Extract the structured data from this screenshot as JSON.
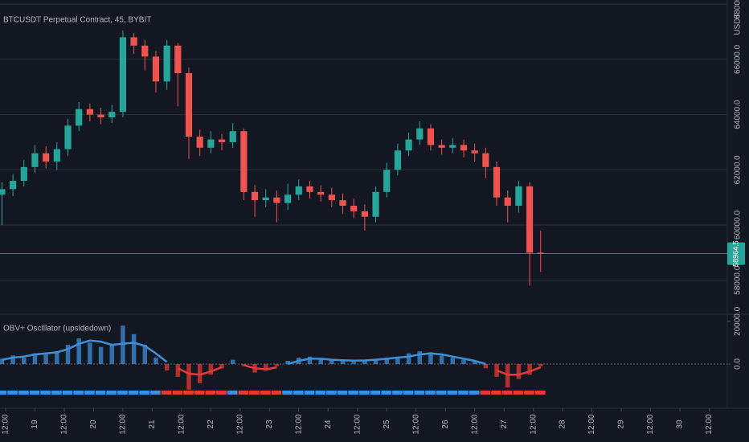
{
  "chart_data": [
    {
      "type": "candlestick",
      "title": "BTCUSDT Perpetual Contract, 45, BYBIT",
      "currency": "USDT",
      "x": [
        -1.5,
        3,
        7.5,
        12,
        16.5,
        21,
        25.5,
        30,
        34.5,
        39,
        43.5,
        48,
        52.5,
        57,
        61.5,
        66,
        70.5,
        75,
        79.5,
        84,
        88.5,
        93,
        97.5,
        102,
        106.5,
        111,
        115.5,
        120,
        124.5,
        129,
        133.5,
        138,
        142.5,
        147,
        151.5,
        156,
        160.5,
        165,
        169.5,
        174,
        178.5,
        183,
        187.5,
        192,
        196.5,
        201,
        205.5,
        210,
        214.5,
        219
      ],
      "open": [
        61100,
        61300,
        61600,
        62100,
        62600,
        62300,
        62750,
        63600,
        64200,
        64000,
        63900,
        64100,
        66800,
        66500,
        66100,
        65200,
        66500,
        65500,
        63200,
        62800,
        63100,
        63000,
        63400,
        61200,
        60900,
        61000,
        60800,
        61100,
        61400,
        61200,
        61100,
        60900,
        60700,
        60500,
        60300,
        61200,
        62000,
        62700,
        63100,
        63500,
        62900,
        62800,
        62900,
        62700,
        62600,
        62100,
        61000,
        60700,
        61400,
        59000
      ],
      "high": [
        61550,
        61850,
        62350,
        62900,
        62850,
        63000,
        63850,
        64450,
        64400,
        64250,
        64350,
        67050,
        66950,
        66700,
        66300,
        66700,
        66600,
        65700,
        63450,
        63400,
        63300,
        63700,
        63500,
        61450,
        61300,
        61250,
        61500,
        61650,
        61600,
        61450,
        61350,
        61150,
        60950,
        60750,
        61400,
        62250,
        62950,
        63350,
        63750,
        63650,
        63100,
        63150,
        63100,
        62950,
        62800,
        62300,
        61250,
        61600,
        61550,
        59800
      ],
      "low": [
        60000,
        61050,
        61400,
        61900,
        62050,
        62000,
        62500,
        63400,
        63750,
        63650,
        63700,
        63900,
        66200,
        65600,
        64800,
        64900,
        64300,
        62400,
        62500,
        62600,
        62700,
        62800,
        60900,
        60300,
        60650,
        60100,
        60550,
        60900,
        60950,
        60850,
        60650,
        60400,
        60250,
        59800,
        60100,
        61000,
        61800,
        62500,
        62900,
        62700,
        62550,
        62600,
        62450,
        62300,
        61700,
        60700,
        60100,
        60450,
        57800,
        58300
      ],
      "close": [
        61300,
        61600,
        62100,
        62600,
        62300,
        62750,
        63600,
        64200,
        64000,
        63900,
        64100,
        66800,
        66500,
        66100,
        65200,
        66500,
        65500,
        63200,
        62800,
        63100,
        63000,
        63400,
        61200,
        60900,
        61000,
        60800,
        61100,
        61400,
        61200,
        61100,
        60900,
        60700,
        60500,
        60300,
        61200,
        62000,
        62700,
        63100,
        63500,
        62900,
        62800,
        62900,
        62700,
        62600,
        62100,
        61000,
        60700,
        61400,
        59000,
        58964.5
      ],
      "up_color": "#26a69a",
      "down_color": "#ef5350",
      "ylim": [
        56800,
        68150
      ],
      "yticks": [
        {
          "value": 58000,
          "label": "58000.0"
        },
        {
          "value": 60000,
          "label": "60000.0"
        },
        {
          "value": 62000,
          "label": "62000.0"
        },
        {
          "value": 64000,
          "label": "64000.0"
        },
        {
          "value": 66000,
          "label": "66000.0"
        },
        {
          "value": 68000,
          "label": "68000.0"
        }
      ],
      "xlim": [
        -2.3,
        295.4
      ],
      "xticks": [
        {
          "value": 0,
          "label": "12:00"
        },
        {
          "value": 12,
          "label": "19"
        },
        {
          "value": 24,
          "label": "12:00"
        },
        {
          "value": 36,
          "label": "20"
        },
        {
          "value": 48,
          "label": "12:00"
        },
        {
          "value": 60,
          "label": "21"
        },
        {
          "value": 72,
          "label": "12:00"
        },
        {
          "value": 84,
          "label": "22"
        },
        {
          "value": 96,
          "label": "12:00"
        },
        {
          "value": 108,
          "label": "23"
        },
        {
          "value": 120,
          "label": "12:00"
        },
        {
          "value": 132,
          "label": "24"
        },
        {
          "value": 144,
          "label": "12:00"
        },
        {
          "value": 156,
          "label": "25"
        },
        {
          "value": 168,
          "label": "12:00"
        },
        {
          "value": 180,
          "label": "26"
        },
        {
          "value": 192,
          "label": "12:00"
        },
        {
          "value": 204,
          "label": "27"
        },
        {
          "value": 216,
          "label": "12:00"
        },
        {
          "value": 228,
          "label": "28"
        },
        {
          "value": 240,
          "label": "12:00"
        },
        {
          "value": 252,
          "label": "29"
        },
        {
          "value": 264,
          "label": "12:00"
        },
        {
          "value": 276,
          "label": "30"
        },
        {
          "value": 288,
          "label": "12:00"
        }
      ],
      "grid": true
    },
    {
      "type": "bar",
      "title": "OBV+ Oscillator (upsidedown)",
      "values": [
        2500,
        4000,
        3000,
        5000,
        4500,
        6000,
        9000,
        12000,
        10000,
        8000,
        9000,
        18000,
        14000,
        9000,
        3000,
        -3000,
        -6000,
        -12000,
        -9000,
        -5000,
        -2000,
        2000,
        -1000,
        -4000,
        -3000,
        -1000,
        1500,
        3000,
        3500,
        2500,
        2000,
        1500,
        1000,
        1500,
        2500,
        3000,
        3500,
        5000,
        6000,
        5500,
        4000,
        3000,
        2000,
        1000,
        -2000,
        -6000,
        -11000,
        -7000,
        -5000,
        -1000
      ],
      "line_values": [
        2000,
        3000,
        3500,
        4500,
        5000,
        5500,
        7000,
        9500,
        11000,
        10500,
        9000,
        9500,
        10000,
        8500,
        5000,
        1000,
        -2000,
        -4500,
        -5000,
        -3500,
        -1500,
        500,
        -500,
        -2000,
        -2500,
        -1500,
        0,
        1500,
        2500,
        2500,
        2000,
        1800,
        1600,
        1700,
        2000,
        2500,
        3000,
        3500,
        4500,
        5000,
        4500,
        3500,
        2500,
        1500,
        0,
        -3000,
        -5000,
        -5000,
        -3500,
        -1500
      ],
      "positive_color": "#3d8fd9",
      "negative_color": "#e53935",
      "ylim": [
        -19600,
        22600
      ],
      "yticks": [
        {
          "value": 0,
          "label": "0.0"
        },
        {
          "value": 20000,
          "label": "20000.0"
        }
      ]
    }
  ]
}
